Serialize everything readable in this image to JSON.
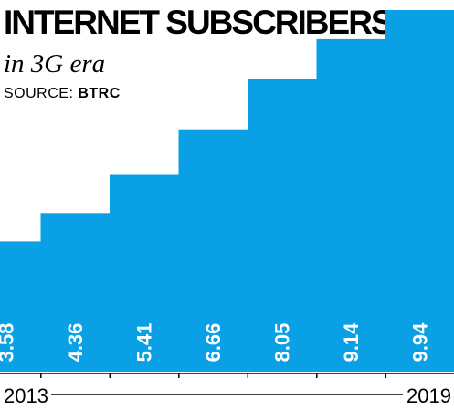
{
  "header": {
    "title": "INTERNET SUBSCRIBERS",
    "subtitle": "in 3G era",
    "source_prefix": "SOURCE: ",
    "source_value": "BTRC"
  },
  "colors": {
    "bar": "#0aa0e6",
    "axis": "#000000",
    "label": "#ffffff"
  },
  "chart_data": {
    "type": "bar",
    "title": "INTERNET SUBSCRIBERS",
    "subtitle": "in 3G era",
    "categories": [
      "2013",
      "",
      "",
      "",
      "",
      "",
      "2019"
    ],
    "values": [
      3.58,
      4.36,
      5.41,
      6.66,
      8.05,
      9.14,
      9.94
    ],
    "value_labels": [
      "3.58",
      "4.36",
      "5.41",
      "6.66",
      "8.05",
      "9.14",
      "9.94"
    ],
    "x_tick_labels": [
      "2013",
      "2019"
    ],
    "xlabel": "",
    "ylabel": "",
    "ylim": [
      0,
      9.94
    ],
    "grid": false,
    "legend": "none"
  }
}
